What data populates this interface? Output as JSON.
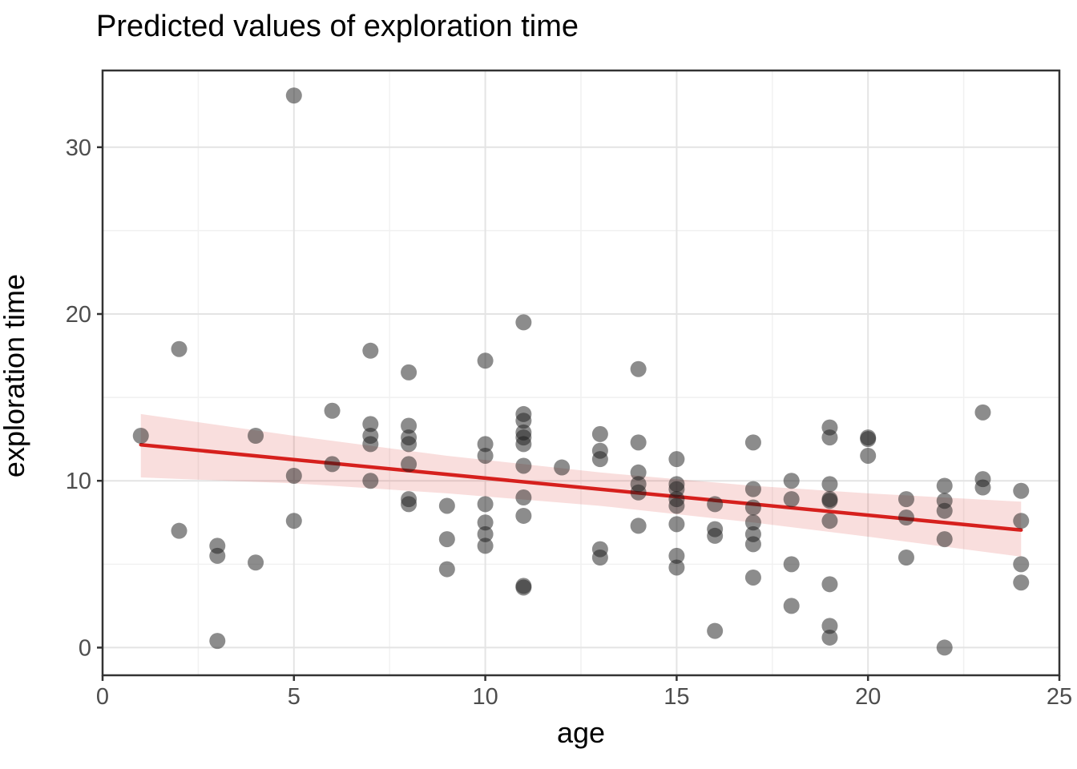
{
  "chart_data": {
    "type": "scatter",
    "title": "Predicted values of exploration time",
    "xlabel": "age",
    "ylabel": "exploration time",
    "xlim": [
      0,
      25
    ],
    "ylim": [
      -1.66,
      34.6
    ],
    "x_ticks": [
      0,
      5,
      10,
      15,
      20,
      25
    ],
    "y_ticks": [
      0,
      10,
      20,
      30
    ],
    "x_minor": [
      2.5,
      7.5,
      12.5,
      17.5,
      22.5
    ],
    "y_minor": [
      5,
      15,
      25
    ],
    "grid": "on",
    "legend": "none",
    "points": [
      [
        1,
        12.7
      ],
      [
        2,
        17.9
      ],
      [
        2,
        7.0
      ],
      [
        3,
        6.1
      ],
      [
        3,
        5.5
      ],
      [
        3,
        0.4
      ],
      [
        4,
        12.7
      ],
      [
        4,
        5.1
      ],
      [
        5,
        33.1
      ],
      [
        5,
        10.3
      ],
      [
        5,
        7.6
      ],
      [
        6,
        14.2
      ],
      [
        6,
        11.0
      ],
      [
        7,
        17.8
      ],
      [
        7,
        13.4
      ],
      [
        7,
        12.7
      ],
      [
        7,
        12.2
      ],
      [
        7,
        10.0
      ],
      [
        8,
        16.5
      ],
      [
        8,
        13.3
      ],
      [
        8,
        12.6
      ],
      [
        8,
        12.2
      ],
      [
        8,
        11.0
      ],
      [
        8,
        8.9
      ],
      [
        8,
        8.6
      ],
      [
        9,
        8.5
      ],
      [
        9,
        6.5
      ],
      [
        9,
        4.7
      ],
      [
        10,
        17.2
      ],
      [
        10,
        12.2
      ],
      [
        10,
        11.5
      ],
      [
        10,
        8.6
      ],
      [
        10,
        7.5
      ],
      [
        10,
        6.8
      ],
      [
        10,
        6.1
      ],
      [
        11,
        19.5
      ],
      [
        11,
        14.0
      ],
      [
        11,
        13.6
      ],
      [
        11,
        12.9
      ],
      [
        11,
        12.6
      ],
      [
        11,
        12.2
      ],
      [
        11,
        10.9
      ],
      [
        11,
        9.0
      ],
      [
        11,
        7.9
      ],
      [
        11,
        3.7
      ],
      [
        11,
        3.6
      ],
      [
        12,
        10.8
      ],
      [
        13,
        12.8
      ],
      [
        13,
        11.8
      ],
      [
        13,
        11.3
      ],
      [
        13,
        5.9
      ],
      [
        13,
        5.4
      ],
      [
        14,
        16.7
      ],
      [
        14,
        12.3
      ],
      [
        14,
        10.5
      ],
      [
        14,
        9.8
      ],
      [
        14,
        9.3
      ],
      [
        14,
        7.3
      ],
      [
        15,
        11.3
      ],
      [
        15,
        9.8
      ],
      [
        15,
        9.5
      ],
      [
        15,
        8.9
      ],
      [
        15,
        8.5
      ],
      [
        15,
        7.4
      ],
      [
        15,
        5.5
      ],
      [
        15,
        4.8
      ],
      [
        16,
        8.6
      ],
      [
        16,
        7.1
      ],
      [
        16,
        6.7
      ],
      [
        16,
        1.0
      ],
      [
        17,
        12.3
      ],
      [
        17,
        9.5
      ],
      [
        17,
        8.4
      ],
      [
        17,
        7.5
      ],
      [
        17,
        6.8
      ],
      [
        17,
        6.2
      ],
      [
        17,
        4.2
      ],
      [
        18,
        10.0
      ],
      [
        18,
        8.9
      ],
      [
        18,
        5.0
      ],
      [
        18,
        2.5
      ],
      [
        19,
        13.2
      ],
      [
        19,
        12.6
      ],
      [
        19,
        9.8
      ],
      [
        19,
        8.9
      ],
      [
        19,
        8.8
      ],
      [
        19,
        7.6
      ],
      [
        19,
        3.8
      ],
      [
        19,
        1.3
      ],
      [
        19,
        0.6
      ],
      [
        20,
        12.6
      ],
      [
        20,
        12.5
      ],
      [
        20,
        11.5
      ],
      [
        21,
        8.9
      ],
      [
        21,
        7.8
      ],
      [
        21,
        5.4
      ],
      [
        22,
        9.7
      ],
      [
        22,
        8.8
      ],
      [
        22,
        8.2
      ],
      [
        22,
        6.5
      ],
      [
        22,
        0.0
      ],
      [
        23,
        14.1
      ],
      [
        23,
        10.1
      ],
      [
        23,
        9.6
      ],
      [
        24,
        9.4
      ],
      [
        24,
        7.6
      ],
      [
        24,
        5.0
      ],
      [
        24,
        3.9
      ]
    ],
    "fit_line": {
      "x": [
        1,
        24
      ],
      "y": [
        12.16,
        7.05
      ]
    },
    "ci_band": {
      "x": [
        1,
        5,
        9,
        13,
        17,
        20,
        24
      ],
      "upper": [
        14.0,
        12.7,
        11.5,
        10.5,
        9.7,
        9.25,
        8.75
      ],
      "lower": [
        10.2,
        9.85,
        9.25,
        8.5,
        7.5,
        6.65,
        5.45
      ]
    },
    "colors": {
      "point": "#1a1a1a",
      "point_opacity": 0.5,
      "line": "#d6201d",
      "band": "#d6201d",
      "band_opacity": 0.15,
      "grid_major": "#e4e4e4",
      "grid_minor": "#f1f1f1",
      "panel_border": "#333333",
      "tick_mark": "#333333",
      "tick_label": "#4d4d4d",
      "title": "#000000",
      "axis_title": "#000000"
    }
  }
}
